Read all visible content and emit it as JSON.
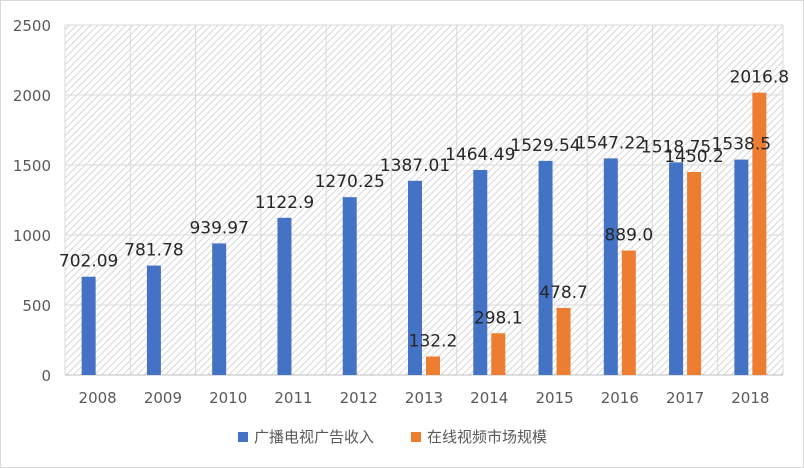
{
  "chart_data": {
    "type": "bar",
    "categories": [
      "2008",
      "2009",
      "2010",
      "2011",
      "2012",
      "2013",
      "2014",
      "2015",
      "2016",
      "2017",
      "2018"
    ],
    "series": [
      {
        "name": "广播电视广告收入",
        "color": "#4472c4",
        "values": [
          702.09,
          781.78,
          939.97,
          1122.9,
          1270.25,
          1387.01,
          1464.49,
          1529.54,
          1547.22,
          1518.75,
          1538.5
        ],
        "labels": [
          "702.09",
          "781.78",
          "939.97",
          "1122.9",
          "1270.25",
          "1387.01",
          "1464.49",
          "1529.54",
          "1547.22",
          "1518.75",
          "1538.5"
        ]
      },
      {
        "name": "在线视频市场规模",
        "color": "#ed7d31",
        "values": [
          null,
          null,
          null,
          null,
          null,
          132.2,
          298.1,
          478.7,
          889.0,
          1450.2,
          2016.8
        ],
        "labels": [
          "",
          "",
          "",
          "",
          "",
          "132.2",
          "298.1",
          "478.7",
          "889.0",
          "1450.2",
          "2016.8"
        ]
      }
    ],
    "ylim": [
      0,
      2500
    ],
    "yticks": [
      "0",
      "500",
      "1000",
      "1500",
      "2000",
      "2500"
    ],
    "legend_position": "bottom",
    "grid": true,
    "plot_background": "hatched"
  }
}
